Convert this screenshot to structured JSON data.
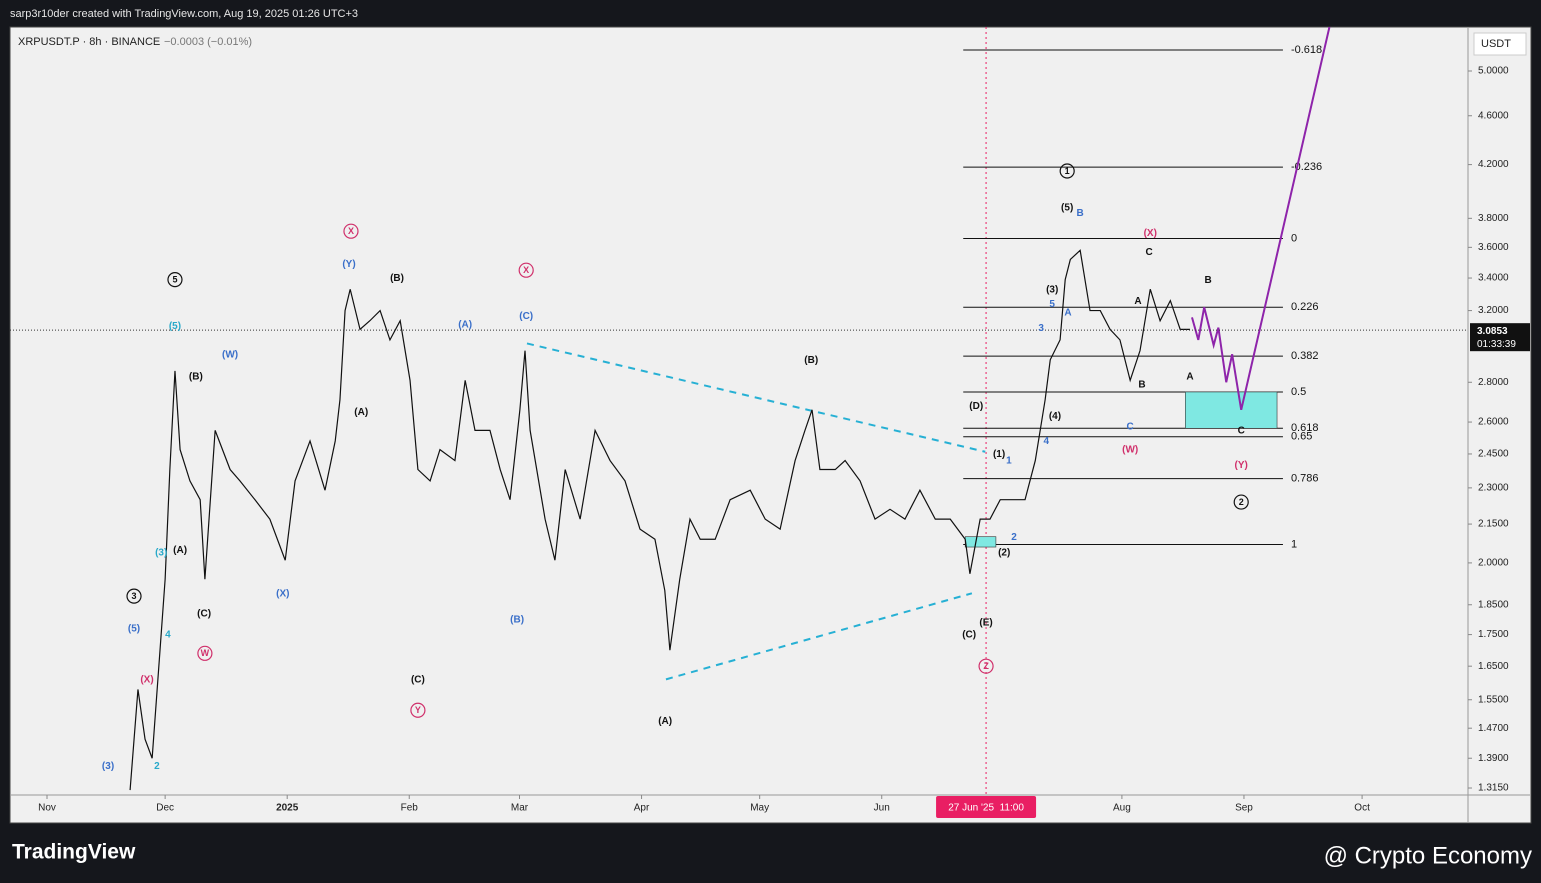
{
  "header": {
    "credit": "sarp3r10der created with TradingView.com, Aug 19, 2025 01:26 UTC+3",
    "symbol": "XRPUSDT.P · 8h · BINANCE",
    "change": "−0.0003 (−0.01%)"
  },
  "chart_data": {
    "type": "line",
    "log_scale": true,
    "color": "#111111",
    "x": [
      21.1,
      23.1,
      24.9,
      26.7,
      28.7,
      30.0,
      31.2,
      32.5,
      33.8,
      36.3,
      38.9,
      40.1,
      42.7,
      46.5,
      49.0,
      52.8,
      56.6,
      60.5,
      63.0,
      66.8,
      70.6,
      73.2,
      74.4,
      75.7,
      77.0,
      79.5,
      82.0,
      84.6,
      87.1,
      89.7,
      92.2,
      94.2,
      97.3,
      99.8,
      103.6,
      106.2,
      108.7,
      112.5,
      115.1,
      117.6,
      120.1,
      121.4,
      122.7,
      126.5,
      129.0,
      131.6,
      135.4,
      139.2,
      143.0,
      146.8,
      150.6,
      154.4,
      156.9,
      158.2,
      160.7,
      163.3,
      165.9,
      169.7,
      173.5,
      178.6,
      182.4,
      186.2,
      190.0,
      192.5,
      194.3,
      196.3,
      200.2,
      202.7,
      206.5,
      210.3,
      214.1,
      217.9,
      221.7,
      225.6,
      229.4,
      233.2,
      234.4,
      237.0,
      239.5,
      242.1,
      245.9,
      248.4,
      251.0,
      253.5,
      254.8,
      257.3,
      258.6,
      259.9,
      262.4,
      264.9,
      267.5,
      270.0,
      272.5,
      275.1,
      277.6,
      280.2,
      282.7,
      285.3,
      287.8,
      290.3
    ],
    "values": [
      1.31,
      1.58,
      1.44,
      1.39,
      1.7,
      1.94,
      2.38,
      2.86,
      2.47,
      2.33,
      2.25,
      1.94,
      2.56,
      2.38,
      2.33,
      2.25,
      2.17,
      2.01,
      2.33,
      2.51,
      2.29,
      2.51,
      2.71,
      3.2,
      3.33,
      3.09,
      3.14,
      3.2,
      3.03,
      3.14,
      2.81,
      2.38,
      2.33,
      2.47,
      2.42,
      2.81,
      2.56,
      2.56,
      2.38,
      2.25,
      2.66,
      2.97,
      2.56,
      2.17,
      2.01,
      2.38,
      2.17,
      2.56,
      2.42,
      2.33,
      2.13,
      2.09,
      1.9,
      1.7,
      1.94,
      2.17,
      2.09,
      2.09,
      2.25,
      2.29,
      2.17,
      2.13,
      2.42,
      2.56,
      2.66,
      2.38,
      2.38,
      2.42,
      2.33,
      2.17,
      2.21,
      2.17,
      2.29,
      2.17,
      2.17,
      2.09,
      1.96,
      2.17,
      2.17,
      2.25,
      2.25,
      2.25,
      2.42,
      2.71,
      2.92,
      3.03,
      3.39,
      3.52,
      3.58,
      3.2,
      3.2,
      3.09,
      3.03,
      2.81,
      2.97,
      3.33,
      3.14,
      3.26,
      3.09,
      3.09
    ],
    "xlim": [
      -9.4,
      360.9
    ],
    "ylim": [
      1.298,
      5.427
    ],
    "xticks": [
      {
        "value": 0,
        "label": "Nov"
      },
      {
        "value": 30,
        "label": "Dec"
      },
      {
        "value": 61,
        "label": "2025"
      },
      {
        "value": 92,
        "label": "Feb"
      },
      {
        "value": 120,
        "label": "Mar"
      },
      {
        "value": 151,
        "label": "Apr"
      },
      {
        "value": 181,
        "label": "May"
      },
      {
        "value": 212,
        "label": "Jun"
      },
      {
        "value": 273,
        "label": "Aug"
      },
      {
        "value": 304,
        "label": "Sep"
      },
      {
        "value": 334,
        "label": "Oct"
      }
    ],
    "yticks": [
      {
        "value": 5.0,
        "label": "5.0000"
      },
      {
        "value": 4.6,
        "label": "4.6000"
      },
      {
        "value": 4.2,
        "label": "4.2000"
      },
      {
        "value": 3.8,
        "label": "3.8000"
      },
      {
        "value": 3.6,
        "label": "3.6000"
      },
      {
        "value": 3.4,
        "label": "3.4000"
      },
      {
        "value": 3.2,
        "label": "3.2000"
      },
      {
        "value": 2.8,
        "label": "2.8000"
      },
      {
        "value": 2.6,
        "label": "2.6000"
      },
      {
        "value": 2.45,
        "label": "2.4500"
      },
      {
        "value": 2.3,
        "label": "2.3000"
      },
      {
        "value": 2.15,
        "label": "2.1500"
      },
      {
        "value": 2.0,
        "label": "2.0000"
      },
      {
        "value": 1.85,
        "label": "1.8500"
      },
      {
        "value": 1.75,
        "label": "1.7500"
      },
      {
        "value": 1.65,
        "label": "1.6500"
      },
      {
        "value": 1.55,
        "label": "1.5500"
      },
      {
        "value": 1.47,
        "label": "1.4700"
      },
      {
        "value": 1.39,
        "label": "1.3900"
      },
      {
        "value": 1.315,
        "label": "1.3150"
      }
    ],
    "currency": "USDT",
    "last_price": 3.0853,
    "countdown": "01:33:39",
    "marker": {
      "x": 238.5,
      "label": "27 Jun '25  11:00",
      "color": "#e91e63"
    },
    "fib_levels": [
      {
        "level": -0.618,
        "price": 5.2
      },
      {
        "level": -0.236,
        "price": 4.18
      },
      {
        "level": 0,
        "price": 3.66
      },
      {
        "level": 0.226,
        "price": 3.22
      },
      {
        "level": 0.382,
        "price": 2.94
      },
      {
        "level": 0.5,
        "price": 2.75
      },
      {
        "level": 0.618,
        "price": 2.57
      },
      {
        "level": 0.65,
        "price": 2.53
      },
      {
        "level": 0.786,
        "price": 2.34
      },
      {
        "level": 1,
        "price": 2.07
      }
    ],
    "fib_x": [
      232.7,
      313.9
    ],
    "trendlines": [
      {
        "x": [
          121.9,
          238.3
        ],
        "y": [
          3.01,
          2.46
        ],
        "color": "#26b0d4"
      },
      {
        "x": [
          157.2,
          234.9
        ],
        "y": [
          1.61,
          1.89
        ],
        "color": "#26b0d4"
      }
    ],
    "projection": {
      "x": [
        290.8,
        292.4,
        293.9,
        296.3,
        297.5,
        299.5,
        301.0,
        303.3,
        325.9
      ],
      "y": [
        3.16,
        3.03,
        3.22,
        3.0,
        3.1,
        2.8,
        2.95,
        2.66,
        5.46
      ],
      "color": "#8e24aa"
    },
    "zones": [
      {
        "x": [
          289.1,
          312.4
        ],
        "y": [
          2.57,
          2.75
        ],
        "color": "#7fe8e2"
      },
      {
        "x": [
          233.2,
          241.0
        ],
        "y": [
          2.06,
          2.1
        ],
        "color": "#7fe8e2"
      }
    ],
    "annotations": [
      {
        "text": "5",
        "x": 32.5,
        "y": 3.39,
        "color": "#111111",
        "circle": true
      },
      {
        "text": "(5)",
        "x": 32.5,
        "y": 3.11,
        "color": "#29a9c9"
      },
      {
        "text": "(W)",
        "x": 46.5,
        "y": 2.95,
        "color": "#3a6fc9"
      },
      {
        "text": "(B)",
        "x": 37.8,
        "y": 2.83,
        "color": "#111111"
      },
      {
        "text": "(A)",
        "x": 33.8,
        "y": 2.05,
        "color": "#111111"
      },
      {
        "text": "(3)",
        "x": 29.0,
        "y": 2.04,
        "color": "#29a9c9"
      },
      {
        "text": "(C)",
        "x": 39.9,
        "y": 1.82,
        "color": "#111111"
      },
      {
        "text": "3",
        "x": 22.1,
        "y": 1.88,
        "color": "#111111",
        "circle": true
      },
      {
        "text": "(5)",
        "x": 22.1,
        "y": 1.77,
        "color": "#3a6fc9"
      },
      {
        "text": "4",
        "x": 30.7,
        "y": 1.75,
        "color": "#29a9c9"
      },
      {
        "text": "W",
        "x": 40.1,
        "y": 1.69,
        "color": "#d0306b",
        "circle": true
      },
      {
        "text": "(X)",
        "x": 25.4,
        "y": 1.61,
        "color": "#d0306b"
      },
      {
        "text": "2",
        "x": 27.9,
        "y": 1.37,
        "color": "#29a9c9"
      },
      {
        "text": "(3)",
        "x": 15.5,
        "y": 1.37,
        "color": "#3a6fc9"
      },
      {
        "text": "(X)",
        "x": 59.9,
        "y": 1.89,
        "color": "#3a6fc9"
      },
      {
        "text": "X",
        "x": 77.2,
        "y": 3.71,
        "color": "#d0306b",
        "circle": true
      },
      {
        "text": "(Y)",
        "x": 76.7,
        "y": 3.49,
        "color": "#3a6fc9"
      },
      {
        "text": "(B)",
        "x": 88.9,
        "y": 3.4,
        "color": "#111111"
      },
      {
        "text": "(A)",
        "x": 79.8,
        "y": 2.65,
        "color": "#111111"
      },
      {
        "text": "(C)",
        "x": 94.2,
        "y": 1.61,
        "color": "#111111"
      },
      {
        "text": "Y",
        "x": 94.2,
        "y": 1.52,
        "color": "#d0306b",
        "circle": true
      },
      {
        "text": "(A)",
        "x": 106.2,
        "y": 3.12,
        "color": "#3a6fc9"
      },
      {
        "text": "X",
        "x": 121.7,
        "y": 3.45,
        "color": "#d0306b",
        "circle": true
      },
      {
        "text": "(C)",
        "x": 121.7,
        "y": 3.17,
        "color": "#3a6fc9"
      },
      {
        "text": "(B)",
        "x": 119.4,
        "y": 1.8,
        "color": "#3a6fc9"
      },
      {
        "text": "(B)",
        "x": 194.1,
        "y": 2.92,
        "color": "#111111"
      },
      {
        "text": "(A)",
        "x": 157.0,
        "y": 1.49,
        "color": "#111111"
      },
      {
        "text": "(D)",
        "x": 236.0,
        "y": 2.68,
        "color": "#111111"
      },
      {
        "text": "(1)",
        "x": 241.8,
        "y": 2.45,
        "color": "#111111"
      },
      {
        "text": "1",
        "x": 244.3,
        "y": 2.42,
        "color": "#3a6fc9"
      },
      {
        "text": "(2)",
        "x": 243.1,
        "y": 2.04,
        "color": "#111111"
      },
      {
        "text": "2",
        "x": 245.6,
        "y": 2.1,
        "color": "#3a6fc9"
      },
      {
        "text": "(C)",
        "x": 234.2,
        "y": 1.75,
        "color": "#111111"
      },
      {
        "text": "(E)",
        "x": 238.5,
        "y": 1.79,
        "color": "#111111"
      },
      {
        "text": "Z",
        "x": 238.5,
        "y": 1.65,
        "color": "#d0306b",
        "circle": true
      },
      {
        "text": "1",
        "x": 259.1,
        "y": 4.15,
        "color": "#111111",
        "circle": true
      },
      {
        "text": "(5)",
        "x": 259.1,
        "y": 3.88,
        "color": "#111111"
      },
      {
        "text": "B",
        "x": 262.4,
        "y": 3.84,
        "color": "#3a6fc9"
      },
      {
        "text": "(3)",
        "x": 255.3,
        "y": 3.33,
        "color": "#111111"
      },
      {
        "text": "5",
        "x": 255.3,
        "y": 3.24,
        "color": "#3a6fc9"
      },
      {
        "text": "A",
        "x": 259.3,
        "y": 3.19,
        "color": "#3a6fc9"
      },
      {
        "text": "3",
        "x": 252.5,
        "y": 3.1,
        "color": "#3a6fc9"
      },
      {
        "text": "(4)",
        "x": 256.0,
        "y": 2.63,
        "color": "#111111"
      },
      {
        "text": "4",
        "x": 253.8,
        "y": 2.51,
        "color": "#3a6fc9"
      },
      {
        "text": "(X)",
        "x": 280.2,
        "y": 3.7,
        "color": "#d0306b"
      },
      {
        "text": "C",
        "x": 279.9,
        "y": 3.57,
        "color": "#111111"
      },
      {
        "text": "A",
        "x": 277.1,
        "y": 3.26,
        "color": "#111111"
      },
      {
        "text": "B",
        "x": 278.1,
        "y": 2.79,
        "color": "#111111"
      },
      {
        "text": "C",
        "x": 275.1,
        "y": 2.58,
        "color": "#3a6fc9"
      },
      {
        "text": "(W)",
        "x": 275.1,
        "y": 2.47,
        "color": "#d0306b"
      },
      {
        "text": "B",
        "x": 294.9,
        "y": 3.39,
        "color": "#111111"
      },
      {
        "text": "A",
        "x": 290.3,
        "y": 2.83,
        "color": "#111111"
      },
      {
        "text": "C",
        "x": 303.3,
        "y": 2.56,
        "color": "#111111"
      },
      {
        "text": "(Y)",
        "x": 303.3,
        "y": 2.4,
        "color": "#d0306b"
      },
      {
        "text": "2",
        "x": 303.3,
        "y": 2.24,
        "color": "#111111",
        "circle": true
      }
    ]
  },
  "footer": {
    "brand": "TradingView",
    "source": "@ Crypto Economy"
  }
}
